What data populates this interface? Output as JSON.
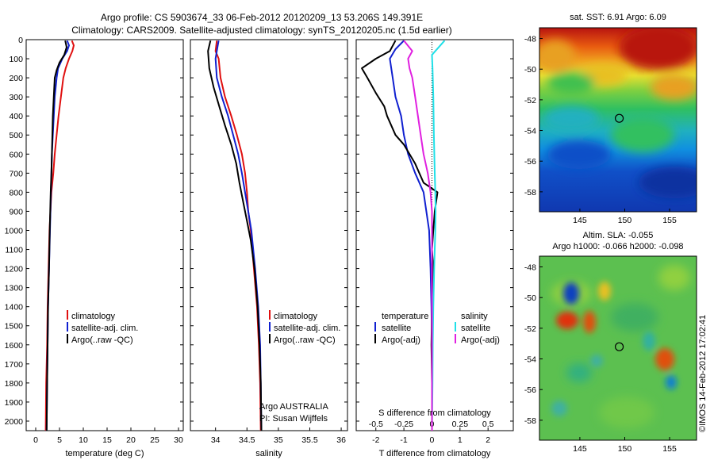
{
  "figure": {
    "title_line1": "Argo profile: CS 5903674_33 06-Feb-2012 20120209_13 53.206S 149.391E",
    "title_line2": "Climatology: CARS2009. Satellite-adjusted climatology: synTS_20120205.nc (1.5d earlier)",
    "credit": "©IMOS 14-Feb-2012 17:02:41",
    "colors": {
      "climatology": "#e01010",
      "satellite": "#1020d0",
      "argo": "#000000",
      "satellite_s": "#20e0e8",
      "argo_s": "#e020e0"
    }
  },
  "chart_data": [
    {
      "id": "temperature",
      "type": "line",
      "xlabel": "temperature (deg C)",
      "xlim": [
        -2,
        31
      ],
      "ylim": [
        0,
        2050
      ],
      "y_reversed": true,
      "xticks": [
        0,
        5,
        10,
        15,
        20,
        25,
        30
      ],
      "yticks": [
        0,
        100,
        200,
        300,
        400,
        500,
        600,
        700,
        800,
        900,
        1000,
        1100,
        1200,
        1300,
        1400,
        1500,
        1600,
        1700,
        1800,
        1900,
        2000
      ],
      "legend": [
        "climatology",
        "satellite-adj. clim.",
        "Argo(..raw -QC)"
      ],
      "series": [
        {
          "name": "climatology",
          "color": "#e01010",
          "points": [
            [
              7.6,
              5
            ],
            [
              8.0,
              30
            ],
            [
              7.7,
              60
            ],
            [
              7.0,
              100
            ],
            [
              6.3,
              150
            ],
            [
              5.8,
              200
            ],
            [
              5.3,
              300
            ],
            [
              4.8,
              400
            ],
            [
              4.4,
              500
            ],
            [
              4.0,
              600
            ],
            [
              3.7,
              700
            ],
            [
              3.3,
              800
            ],
            [
              3.1,
              900
            ],
            [
              2.9,
              1000
            ],
            [
              2.7,
              1200
            ],
            [
              2.5,
              1400
            ],
            [
              2.4,
              1600
            ],
            [
              2.2,
              1800
            ],
            [
              2.1,
              2050
            ]
          ]
        },
        {
          "name": "satellite-adj. clim.",
          "color": "#1020d0",
          "points": [
            [
              6.6,
              5
            ],
            [
              7.0,
              30
            ],
            [
              6.6,
              60
            ],
            [
              5.6,
              100
            ],
            [
              4.7,
              150
            ],
            [
              4.4,
              200
            ],
            [
              4.0,
              300
            ],
            [
              3.8,
              400
            ],
            [
              3.6,
              500
            ],
            [
              3.4,
              600
            ],
            [
              3.3,
              700
            ],
            [
              3.2,
              800
            ],
            [
              3.1,
              900
            ],
            [
              3.0,
              1000
            ],
            [
              2.8,
              1200
            ],
            [
              2.6,
              1400
            ],
            [
              2.5,
              1600
            ],
            [
              2.4,
              1800
            ],
            [
              2.3,
              2050
            ]
          ]
        },
        {
          "name": "Argo(..raw -QC)",
          "color": "#000000",
          "points": [
            [
              6.2,
              5
            ],
            [
              6.5,
              40
            ],
            [
              6.0,
              80
            ],
            [
              5.0,
              120
            ],
            [
              4.4,
              160
            ],
            [
              4.0,
              200
            ],
            [
              3.8,
              300
            ],
            [
              3.6,
              400
            ],
            [
              3.5,
              500
            ],
            [
              3.4,
              600
            ],
            [
              3.3,
              700
            ],
            [
              3.15,
              800
            ],
            [
              3.05,
              900
            ],
            [
              2.95,
              1000
            ],
            [
              2.8,
              1200
            ],
            [
              2.6,
              1400
            ],
            [
              2.5,
              1600
            ],
            [
              2.4,
              1800
            ],
            [
              2.3,
              2050
            ]
          ]
        }
      ]
    },
    {
      "id": "salinity",
      "type": "line",
      "xlabel": "salinity",
      "xlim": [
        33.6,
        36.1
      ],
      "ylim": [
        0,
        2050
      ],
      "y_reversed": true,
      "xticks": [
        34,
        34.5,
        35,
        35.5,
        36
      ],
      "legend": [
        "climatology",
        "satellite-adj. clim.",
        "Argo(..raw -QC)"
      ],
      "annotation": [
        "Argo AUSTRALIA",
        "PI: Susan Wijffels"
      ],
      "series": [
        {
          "name": "climatology",
          "color": "#e01010",
          "points": [
            [
              34.02,
              5
            ],
            [
              34.0,
              60
            ],
            [
              34.05,
              100
            ],
            [
              34.08,
              200
            ],
            [
              34.15,
              300
            ],
            [
              34.25,
              400
            ],
            [
              34.34,
              500
            ],
            [
              34.42,
              600
            ],
            [
              34.47,
              700
            ],
            [
              34.5,
              800
            ],
            [
              34.52,
              900
            ],
            [
              34.56,
              1000
            ],
            [
              34.61,
              1200
            ],
            [
              34.66,
              1400
            ],
            [
              34.69,
              1600
            ],
            [
              34.71,
              1800
            ],
            [
              34.72,
              2050
            ]
          ]
        },
        {
          "name": "satellite-adj. clim.",
          "color": "#1020d0",
          "points": [
            [
              34.05,
              5
            ],
            [
              34.03,
              40
            ],
            [
              34.0,
              100
            ],
            [
              34.02,
              200
            ],
            [
              34.1,
              300
            ],
            [
              34.2,
              400
            ],
            [
              34.28,
              500
            ],
            [
              34.36,
              600
            ],
            [
              34.42,
              700
            ],
            [
              34.47,
              800
            ],
            [
              34.52,
              900
            ],
            [
              34.57,
              1000
            ],
            [
              34.63,
              1200
            ],
            [
              34.68,
              1400
            ],
            [
              34.71,
              1600
            ],
            [
              34.72,
              1800
            ],
            [
              34.73,
              2050
            ]
          ]
        },
        {
          "name": "Argo(..raw -QC)",
          "color": "#000000",
          "points": [
            [
              33.92,
              5
            ],
            [
              33.88,
              60
            ],
            [
              33.9,
              150
            ],
            [
              33.97,
              250
            ],
            [
              34.06,
              350
            ],
            [
              34.15,
              450
            ],
            [
              34.25,
              550
            ],
            [
              34.33,
              650
            ],
            [
              34.38,
              750
            ],
            [
              34.44,
              850
            ],
            [
              34.5,
              950
            ],
            [
              34.56,
              1050
            ],
            [
              34.62,
              1200
            ],
            [
              34.67,
              1400
            ],
            [
              34.7,
              1600
            ],
            [
              34.72,
              1800
            ],
            [
              34.73,
              2050
            ]
          ]
        }
      ]
    },
    {
      "id": "difference",
      "type": "line",
      "xlabel": "T difference from climatology",
      "xlabel_top": "S difference from climatology",
      "xlim": [
        -2.7,
        2.9
      ],
      "ylim": [
        0,
        2050
      ],
      "y_reversed": true,
      "xticks": [
        -2,
        -1,
        0,
        1,
        2
      ],
      "xticks_top": [
        -0.5,
        -0.25,
        0,
        0.25,
        0.5
      ],
      "legend_t_title": "temperature",
      "legend_s_title": "salinity",
      "legend_t": [
        "satellite",
        "Argo(-adj)"
      ],
      "legend_s": [
        "satellite",
        "Argo(-adj)"
      ],
      "series": [
        {
          "name": "T satellite",
          "color": "#1020d0",
          "points": [
            [
              -1.0,
              5
            ],
            [
              -1.3,
              50
            ],
            [
              -1.5,
              100
            ],
            [
              -1.45,
              150
            ],
            [
              -1.4,
              200
            ],
            [
              -1.3,
              300
            ],
            [
              -1.1,
              400
            ],
            [
              -1.0,
              500
            ],
            [
              -0.85,
              600
            ],
            [
              -0.6,
              700
            ],
            [
              -0.3,
              800
            ],
            [
              -0.2,
              900
            ],
            [
              -0.1,
              1000
            ],
            [
              -0.05,
              1200
            ],
            [
              -0.02,
              1400
            ],
            [
              0.0,
              1600
            ],
            [
              0.0,
              1800
            ],
            [
              0.0,
              2050
            ]
          ]
        },
        {
          "name": "T Argo(-adj)",
          "color": "#000000",
          "points": [
            [
              -1.3,
              5
            ],
            [
              -1.5,
              60
            ],
            [
              -2.0,
              100
            ],
            [
              -2.5,
              150
            ],
            [
              -2.3,
              200
            ],
            [
              -2.0,
              280
            ],
            [
              -1.7,
              350
            ],
            [
              -1.6,
              400
            ],
            [
              -1.3,
              500
            ],
            [
              -1.0,
              550
            ],
            [
              -0.6,
              650
            ],
            [
              -0.3,
              750
            ],
            [
              0.2,
              800
            ],
            [
              0.1,
              900
            ],
            [
              0.05,
              1000
            ],
            [
              0.0,
              1100
            ],
            [
              0.05,
              1200
            ],
            [
              0.0,
              1400
            ],
            [
              -0.02,
              1600
            ],
            [
              0.0,
              1800
            ],
            [
              0.0,
              2050
            ]
          ]
        },
        {
          "name": "S satellite",
          "color": "#20e0e8",
          "points": [
            [
              0.45,
              5
            ],
            [
              0.0,
              80
            ],
            [
              0.02,
              150
            ],
            [
              0.05,
              300
            ],
            [
              0.07,
              500
            ],
            [
              0.1,
              700
            ],
            [
              0.12,
              800
            ],
            [
              0.13,
              900
            ],
            [
              0.12,
              1000
            ],
            [
              0.1,
              1100
            ],
            [
              0.08,
              1200
            ],
            [
              0.05,
              1400
            ],
            [
              0.03,
              1600
            ],
            [
              0.02,
              1800
            ],
            [
              0.0,
              2050
            ]
          ]
        },
        {
          "name": "S Argo(-adj)",
          "color": "#e020e0",
          "points": [
            [
              -1.0,
              5
            ],
            [
              -0.7,
              60
            ],
            [
              -0.85,
              100
            ],
            [
              -0.8,
              150
            ],
            [
              -0.7,
              200
            ],
            [
              -0.6,
              300
            ],
            [
              -0.5,
              400
            ],
            [
              -0.4,
              500
            ],
            [
              -0.3,
              600
            ],
            [
              -0.15,
              700
            ],
            [
              -0.05,
              800
            ],
            [
              0.0,
              900
            ],
            [
              0.0,
              1000
            ],
            [
              0.0,
              1200
            ],
            [
              0.0,
              1400
            ],
            [
              0.0,
              1600
            ],
            [
              0.0,
              1800
            ],
            [
              0.0,
              2050
            ]
          ]
        }
      ]
    },
    {
      "id": "sst-map",
      "type": "heatmap",
      "title": "sat. SST: 6.91 Argo: 6.09",
      "xlim": [
        140.5,
        158
      ],
      "ylim": [
        -59.3,
        -47.3
      ],
      "xticks": [
        145,
        150,
        155
      ],
      "yticks": [
        -48,
        -50,
        -52,
        -54,
        -56,
        -58
      ],
      "marker": {
        "lon": 149.391,
        "lat": -53.206
      }
    },
    {
      "id": "sla-map",
      "type": "heatmap",
      "title": "Altim. SLA: -0.055",
      "subtitle": "Argo h1000: -0.066 h2000: -0.098",
      "xlim": [
        140.5,
        158
      ],
      "ylim": [
        -59.3,
        -47.3
      ],
      "xticks": [
        145,
        150,
        155
      ],
      "yticks": [
        -48,
        -50,
        -52,
        -54,
        -56,
        -58
      ],
      "marker": {
        "lon": 149.391,
        "lat": -53.206
      }
    }
  ]
}
